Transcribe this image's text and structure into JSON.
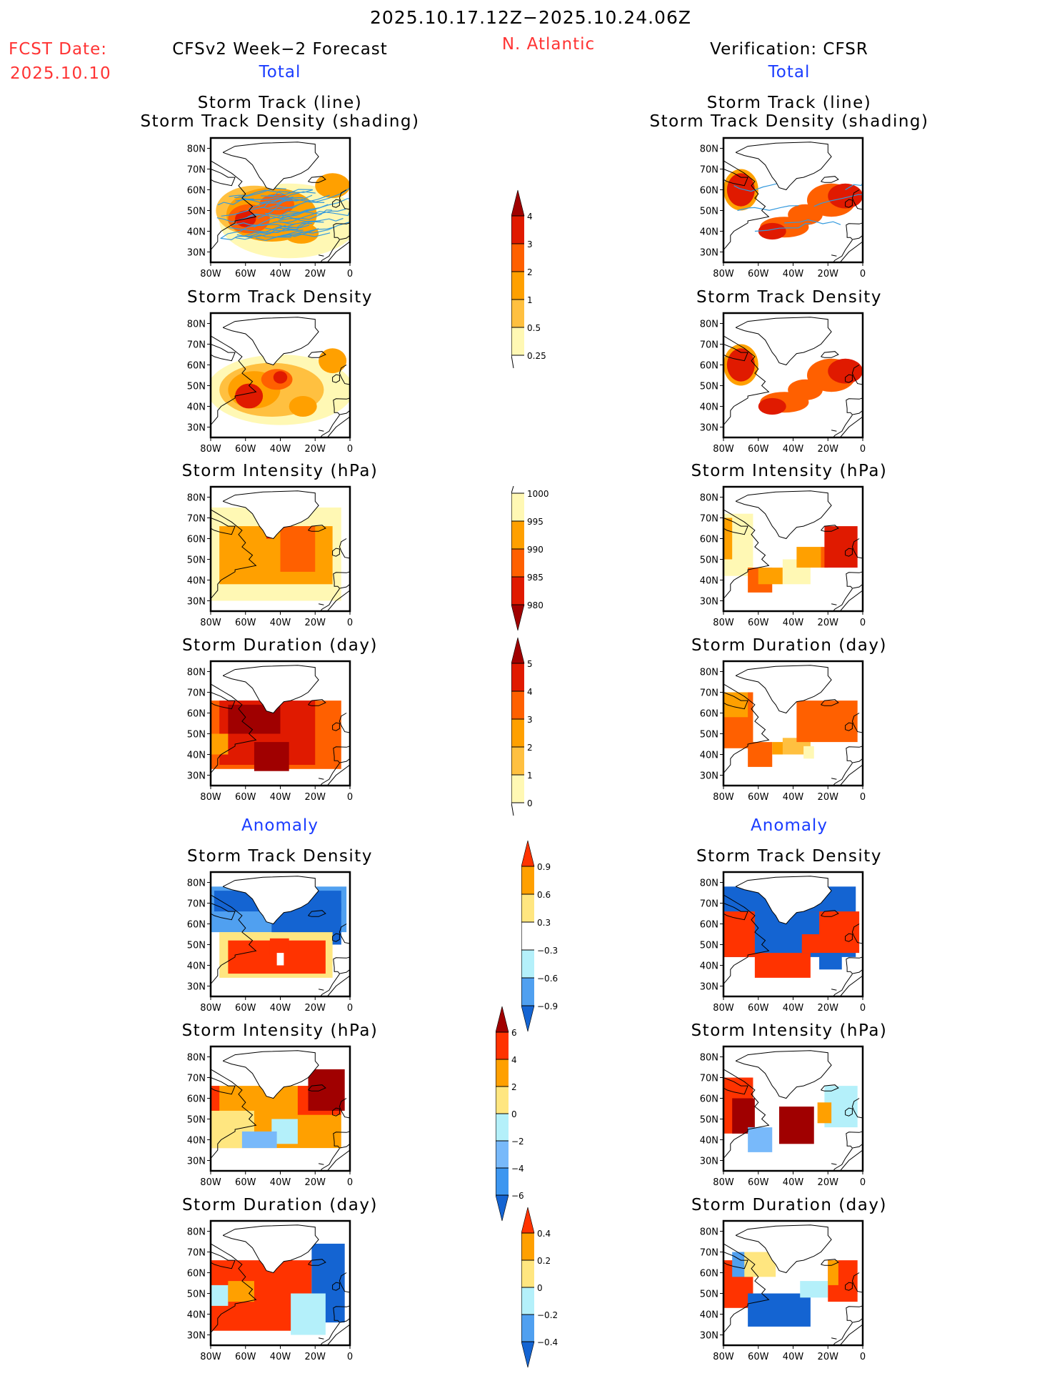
{
  "header": {
    "period": "2025.10.17.12Z−2025.10.24.06Z",
    "fcst_label": "FCST Date:",
    "fcst_date": "2025.10.10",
    "region": "N. Atlantic",
    "left_title": "CFSv2 Week−2 Forecast",
    "right_title": "Verification: CFSR",
    "left_subtitle": "Total",
    "right_subtitle": "Total",
    "left_anomaly": "Anomaly",
    "right_anomaly": "Anomaly"
  },
  "titles": {
    "track_line": "Storm Track (line)",
    "track_shading": "Storm Track Density (shading)",
    "density": "Storm Track Density",
    "intensity": "Storm Intensity (hPa)",
    "duration": "Storm Duration (day)"
  },
  "axes": {
    "lon_ticks": [
      "80W",
      "60W",
      "40W",
      "20W",
      "0"
    ],
    "lat_ticks": [
      "80N",
      "70N",
      "60N",
      "50N",
      "40N",
      "30N"
    ],
    "lon_range": [
      -80,
      0
    ],
    "lat_range": [
      25,
      85
    ]
  },
  "colorbars": [
    {
      "name": "track-density-total",
      "labels": [
        "4",
        "3",
        "2",
        "1",
        "0.5",
        "0.25"
      ],
      "colors": [
        "#a00000",
        "#e01a00",
        "#ff6000",
        "#ffa000",
        "#ffc040",
        "#fff8b4"
      ],
      "upper_arrow": true,
      "lower_arrow": false
    },
    {
      "name": "intensity-total",
      "labels": [
        "1000",
        "995",
        "990",
        "985",
        "980"
      ],
      "colors": [
        "#fff8b4",
        "#ffa000",
        "#ff6000",
        "#e01a00",
        "#a00000"
      ],
      "upper_arrow": false,
      "lower_arrow": true
    },
    {
      "name": "duration-total",
      "labels": [
        "5",
        "4",
        "3",
        "2",
        "1",
        "0"
      ],
      "colors": [
        "#a00000",
        "#e01a00",
        "#ff6000",
        "#ffa000",
        "#ffc040",
        "#fff8b4"
      ],
      "upper_arrow": true,
      "lower_arrow": false
    },
    {
      "name": "track-density-anomaly",
      "labels": [
        "0.9",
        "0.6",
        "0.3",
        "−0.3",
        "−0.6",
        "−0.9"
      ],
      "colors": [
        "#ff3300",
        "#ffa000",
        "#ffe680",
        "#ffffff",
        "#b4f0fa",
        "#50a0f0",
        "#1464d2"
      ],
      "upper_arrow": true,
      "lower_arrow": true
    },
    {
      "name": "intensity-anomaly",
      "labels": [
        "6",
        "4",
        "2",
        "0",
        "−2",
        "−4",
        "−6"
      ],
      "colors": [
        "#a00000",
        "#ff3300",
        "#ffa000",
        "#ffe680",
        "#b4f0fa",
        "#78b9fa",
        "#3c96f0",
        "#1464d2"
      ],
      "upper_arrow": true,
      "lower_arrow": true
    },
    {
      "name": "duration-anomaly",
      "labels": [
        "0.4",
        "0.2",
        "0",
        "−0.2",
        "−0.4"
      ],
      "colors": [
        "#ff3300",
        "#ffa000",
        "#ffe680",
        "#b4f0fa",
        "#50a0f0",
        "#1464d2"
      ],
      "upper_arrow": true,
      "lower_arrow": true
    }
  ],
  "chart_data": [
    {
      "type": "heatmap",
      "panel": "forecast-track",
      "title": "Storm Track (line) / Storm Track Density (shading)",
      "source": "CFSv2",
      "colorbar": 0,
      "blobs": [
        [
          -55,
          50,
          22,
          12,
          1
        ],
        [
          -45,
          48,
          26,
          13,
          2
        ],
        [
          -58,
          46,
          12,
          7,
          3
        ],
        [
          -42,
          53,
          10,
          5,
          3
        ],
        [
          -28,
          39,
          10,
          5,
          2
        ],
        [
          -60,
          46,
          6,
          4,
          4
        ],
        [
          -10,
          62,
          10,
          6,
          2
        ],
        [
          -35,
          45,
          40,
          18,
          0
        ]
      ],
      "tracks": true
    },
    {
      "type": "heatmap",
      "panel": "verif-track",
      "title": "Storm Track (line) / Storm Track Density (shading)",
      "source": "CFSR",
      "colorbar": 0,
      "blobs": [
        [
          -70,
          60,
          10,
          10,
          2
        ],
        [
          -70,
          60,
          8,
          8,
          4
        ],
        [
          -45,
          42,
          14,
          5,
          3
        ],
        [
          -52,
          40,
          8,
          4,
          4
        ],
        [
          -18,
          55,
          14,
          8,
          3
        ],
        [
          -10,
          57,
          10,
          6,
          4
        ],
        [
          -33,
          48,
          10,
          5,
          3
        ]
      ],
      "tracks": true
    },
    {
      "type": "heatmap",
      "panel": "forecast-density",
      "title": "Storm Track Density",
      "source": "CFSv2",
      "colorbar": 0,
      "blobs": [
        [
          -40,
          48,
          42,
          17,
          0
        ],
        [
          -45,
          48,
          30,
          13,
          1
        ],
        [
          -55,
          48,
          15,
          9,
          2
        ],
        [
          -42,
          53,
          9,
          5,
          3
        ],
        [
          -58,
          45,
          8,
          6,
          4
        ],
        [
          -40,
          54,
          4,
          3,
          4
        ],
        [
          -27,
          40,
          8,
          5,
          2
        ],
        [
          -10,
          62,
          8,
          6,
          2
        ]
      ]
    },
    {
      "type": "heatmap",
      "panel": "verif-density",
      "title": "Storm Track Density",
      "source": "CFSR",
      "colorbar": 0,
      "blobs": [
        [
          -70,
          60,
          10,
          10,
          2
        ],
        [
          -70,
          60,
          8,
          8,
          4
        ],
        [
          -45,
          42,
          14,
          5,
          3
        ],
        [
          -52,
          40,
          8,
          4,
          4
        ],
        [
          -18,
          55,
          14,
          8,
          3
        ],
        [
          -10,
          57,
          10,
          6,
          4
        ],
        [
          -33,
          48,
          10,
          5,
          3
        ]
      ]
    },
    {
      "type": "heatmap",
      "panel": "forecast-intensity",
      "title": "Storm Intensity (hPa)",
      "source": "CFSv2",
      "colorbar": 1,
      "cells": [
        [
          -80,
          30,
          -5,
          75,
          0
        ],
        [
          -75,
          38,
          -10,
          66,
          1
        ],
        [
          -40,
          44,
          -20,
          66,
          2
        ],
        [
          -48,
          60,
          -44,
          64,
          3
        ]
      ]
    },
    {
      "type": "heatmap",
      "panel": "verif-intensity",
      "title": "Storm Intensity (hPa)",
      "source": "CFSR",
      "colorbar": 1,
      "cells": [
        [
          -80,
          42,
          -63,
          72,
          0
        ],
        [
          -80,
          50,
          -75,
          70,
          1
        ],
        [
          -66,
          34,
          -52,
          46,
          2
        ],
        [
          -60,
          38,
          -46,
          46,
          1
        ],
        [
          -46,
          38,
          -30,
          50,
          0
        ],
        [
          -38,
          46,
          -24,
          56,
          1
        ],
        [
          -24,
          46,
          -20,
          56,
          2
        ],
        [
          -22,
          46,
          -3,
          66,
          3
        ]
      ]
    },
    {
      "type": "heatmap",
      "panel": "forecast-duration",
      "title": "Storm Duration (day)",
      "source": "CFSv2",
      "colorbar": 2,
      "cells": [
        [
          -80,
          33,
          -5,
          66,
          2
        ],
        [
          -75,
          35,
          -20,
          66,
          3
        ],
        [
          -70,
          50,
          -40,
          64,
          4
        ],
        [
          -55,
          32,
          -35,
          46,
          4
        ],
        [
          -80,
          40,
          -70,
          50,
          1
        ]
      ]
    },
    {
      "type": "heatmap",
      "panel": "verif-duration",
      "title": "Storm Duration (day)",
      "source": "CFSR",
      "colorbar": 2,
      "cells": [
        [
          -80,
          43,
          -63,
          70,
          2
        ],
        [
          -80,
          58,
          -66,
          70,
          1
        ],
        [
          -66,
          34,
          -52,
          46,
          2
        ],
        [
          -52,
          40,
          -44,
          46,
          1
        ],
        [
          -46,
          40,
          -30,
          48,
          0
        ],
        [
          -38,
          46,
          -3,
          66,
          2
        ],
        [
          -34,
          38,
          -28,
          44,
          -1
        ]
      ]
    },
    {
      "type": "heatmap",
      "panel": "forecast-density-anom",
      "title": "Storm Track Density",
      "source": "CFSv2 anomaly",
      "colorbar": 3,
      "cells": [
        [
          -80,
          56,
          -2,
          78,
          5
        ],
        [
          -78,
          66,
          -5,
          76,
          6
        ],
        [
          -45,
          50,
          -5,
          70,
          6
        ],
        [
          -75,
          34,
          -10,
          56,
          2
        ],
        [
          -70,
          36,
          -14,
          52,
          0
        ],
        [
          -46,
          45,
          -35,
          53,
          0
        ],
        [
          -42,
          40,
          -38,
          46,
          3
        ]
      ]
    },
    {
      "type": "heatmap",
      "panel": "verif-density-anom",
      "title": "Storm Track Density",
      "source": "CFSR anomaly",
      "colorbar": 3,
      "cells": [
        [
          -80,
          44,
          -4,
          78,
          6
        ],
        [
          -80,
          44,
          -62,
          66,
          0
        ],
        [
          -62,
          34,
          -30,
          46,
          0
        ],
        [
          -35,
          46,
          -2,
          66,
          0
        ],
        [
          -45,
          55,
          -25,
          66,
          6
        ],
        [
          -25,
          38,
          -12,
          46,
          6
        ],
        [
          -58,
          50,
          -35,
          58,
          6
        ]
      ]
    },
    {
      "type": "heatmap",
      "panel": "forecast-intensity-anom",
      "title": "Storm Intensity (hPa)",
      "source": "CFSv2 anomaly",
      "colorbar": 4,
      "cells": [
        [
          -80,
          36,
          -5,
          66,
          2
        ],
        [
          -80,
          36,
          -55,
          54,
          3
        ],
        [
          -45,
          38,
          -30,
          50,
          4
        ],
        [
          -62,
          36,
          -42,
          44,
          5
        ],
        [
          -30,
          52,
          -5,
          66,
          1
        ],
        [
          -24,
          54,
          -3,
          74,
          0
        ],
        [
          -80,
          54,
          -75,
          66,
          1
        ]
      ]
    },
    {
      "type": "heatmap",
      "panel": "verif-intensity-anom",
      "title": "Storm Intensity (hPa)",
      "source": "CFSR anomaly",
      "colorbar": 4,
      "cells": [
        [
          -80,
          43,
          -63,
          70,
          1
        ],
        [
          -75,
          43,
          -62,
          60,
          0
        ],
        [
          -48,
          38,
          -28,
          56,
          0
        ],
        [
          -66,
          34,
          -52,
          46,
          5
        ],
        [
          -22,
          46,
          -3,
          66,
          4
        ],
        [
          -26,
          48,
          -18,
          58,
          2
        ]
      ]
    },
    {
      "type": "heatmap",
      "panel": "forecast-duration-anom",
      "title": "Storm Duration (day)",
      "source": "CFSv2 anomaly",
      "colorbar": 5,
      "cells": [
        [
          -80,
          32,
          -22,
          66,
          0
        ],
        [
          -22,
          36,
          -3,
          74,
          5
        ],
        [
          -34,
          30,
          -14,
          50,
          3
        ],
        [
          -80,
          44,
          -70,
          54,
          3
        ],
        [
          -70,
          46,
          -55,
          56,
          1
        ]
      ]
    },
    {
      "type": "heatmap",
      "panel": "verif-duration-anom",
      "title": "Storm Duration (day)",
      "source": "CFSR anomaly",
      "colorbar": 5,
      "cells": [
        [
          -80,
          43,
          -63,
          66,
          0
        ],
        [
          -75,
          58,
          -64,
          70,
          4
        ],
        [
          -68,
          58,
          -50,
          70,
          2
        ],
        [
          -66,
          34,
          -30,
          50,
          5
        ],
        [
          -36,
          48,
          -20,
          56,
          3
        ],
        [
          -20,
          46,
          -3,
          66,
          0
        ],
        [
          -20,
          54,
          -14,
          66,
          1
        ]
      ]
    }
  ]
}
